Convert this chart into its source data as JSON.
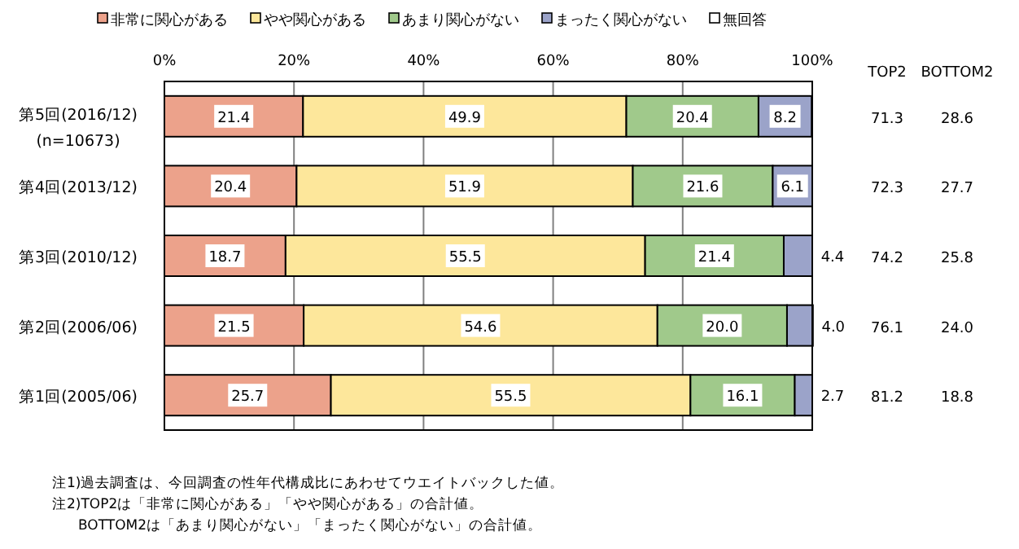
{
  "chart_data": {
    "type": "bar",
    "orientation": "horizontal",
    "stacked": true,
    "categories": [
      "第5回(2016/12)\n(n=10673)",
      "第4回(2013/12)",
      "第3回(2010/12)",
      "第2回(2006/06)",
      "第1回(2005/06)"
    ],
    "series": [
      {
        "name": "非常に関心がある",
        "color": "#eca28b",
        "values": [
          21.4,
          20.4,
          18.7,
          21.5,
          25.7
        ],
        "value_labels": [
          "21.4",
          "20.4",
          "18.7",
          "21.5",
          "25.7"
        ]
      },
      {
        "name": "やや関心がある",
        "color": "#fde79b",
        "values": [
          49.9,
          51.9,
          55.5,
          54.6,
          55.5
        ],
        "value_labels": [
          "49.9",
          "51.9",
          "55.5",
          "54.6",
          "55.5"
        ]
      },
      {
        "name": "あまり関心がない",
        "color": "#a0c98b",
        "values": [
          20.4,
          21.6,
          21.4,
          20.0,
          16.1
        ],
        "value_labels": [
          "20.4",
          "21.6",
          "21.4",
          "20.0",
          "16.1"
        ]
      },
      {
        "name": "まったく関心がない",
        "color": "#9ba3c9",
        "values": [
          8.2,
          6.1,
          4.4,
          4.0,
          2.7
        ],
        "value_labels": [
          "8.2",
          "6.1",
          "4.4",
          "4.0",
          "2.7"
        ]
      },
      {
        "name": "無回答",
        "color": "#ffffff",
        "values": [
          null,
          0,
          0,
          0,
          0
        ]
      }
    ],
    "xlim": [
      0,
      100
    ],
    "xticks": [
      {
        "value": 0,
        "label": "0%"
      },
      {
        "value": 20,
        "label": "20%"
      },
      {
        "value": 40,
        "label": "40%"
      },
      {
        "value": 60,
        "label": "60%"
      },
      {
        "value": 80,
        "label": "80%"
      },
      {
        "value": 100,
        "label": "100%"
      }
    ],
    "grid": "x",
    "legend": "top",
    "annotations": [
      "TOP2",
      "BOTTOM2",
      "71.3",
      "28.6",
      "72.3",
      "27.7",
      "74.2",
      "25.8",
      "76.1",
      "24.0",
      "81.2",
      "18.8",
      "注1)過去調査は、今回調査の性年代構成比にあわせてウエイトバックした値。",
      "注2)TOP2は「非常に関心がある」「やや関心がある」の合計値。",
      "BOTTOM2は「あまり関心がない」「まったく関心がない」の合計値。"
    ]
  }
}
